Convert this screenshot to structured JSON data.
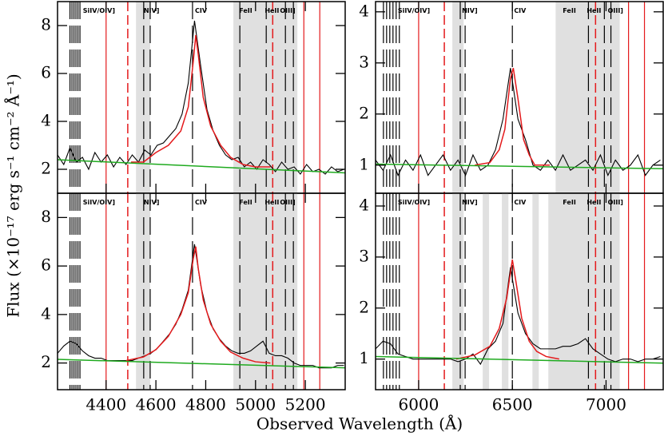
{
  "ylabel": "Flux (×10⁻¹⁷ erg s⁻¹ cm⁻² Å⁻¹)",
  "xlabel": "Observed Wavelength (Å)",
  "chart_data": [
    {
      "type": "line",
      "show_xtick_labels": false,
      "xlim": [
        4205,
        5360
      ],
      "ylim": [
        1,
        9
      ],
      "xticks": [
        4400,
        4600,
        4800,
        5000,
        5200
      ],
      "yticks": [
        2,
        4,
        6,
        8
      ],
      "shaded": [
        [
          4520,
          4577
        ],
        [
          4911,
          5168
        ]
      ],
      "red_lines": [
        4400,
        5194,
        5258
      ],
      "red_dashed": [
        4487,
        5069
      ],
      "line_markers": [
        4255,
        4263,
        4271,
        4279,
        4287,
        4295,
        4551,
        4577,
        4747,
        4937,
        5043,
        5120,
        5152
      ],
      "line_labels": [
        {
          "label": "SiIV/OIV]",
          "x": 4307
        },
        {
          "label": "NIV]",
          "x": 4551
        },
        {
          "label": "CIV",
          "x": 4757
        },
        {
          "label": "FeII",
          "x": 4934
        },
        {
          "label": "HeII",
          "x": 5037
        },
        {
          "label": "OIII]",
          "x": 5098
        }
      ],
      "series": [
        {
          "color": "#000000",
          "x": [
            4205,
            4230,
            4255,
            4280,
            4305,
            4330,
            4355,
            4380,
            4405,
            4430,
            4455,
            4480,
            4505,
            4530,
            4555,
            4580,
            4605,
            4630,
            4655,
            4680,
            4705,
            4730,
            4755,
            4780,
            4805,
            4830,
            4855,
            4880,
            4905,
            4930,
            4955,
            4980,
            5005,
            5030,
            5055,
            5080,
            5105,
            5130,
            5155,
            5180,
            5205,
            5230,
            5255,
            5280,
            5305,
            5330,
            5355
          ],
          "values": [
            2.6,
            2.2,
            2.9,
            2.3,
            2.5,
            2.0,
            2.7,
            2.3,
            2.6,
            2.1,
            2.5,
            2.2,
            2.6,
            2.3,
            2.8,
            2.6,
            3.0,
            3.1,
            3.4,
            3.7,
            4.3,
            5.6,
            8.2,
            6.3,
            4.5,
            3.6,
            3.0,
            2.6,
            2.4,
            2.5,
            2.1,
            2.3,
            2.0,
            2.4,
            2.2,
            1.9,
            2.3,
            2.0,
            2.1,
            1.8,
            2.2,
            1.9,
            2.0,
            1.8,
            2.1,
            1.9,
            2.0
          ]
        },
        {
          "color": "#e41a1c",
          "x": [
            4500,
            4550,
            4600,
            4650,
            4700,
            4730,
            4750,
            4760,
            4770,
            4790,
            4820,
            4860,
            4900,
            4950,
            5000,
            5060
          ],
          "values": [
            2.3,
            2.3,
            2.7,
            3.0,
            3.6,
            4.6,
            6.5,
            7.6,
            6.8,
            5.0,
            3.8,
            3.0,
            2.5,
            2.2,
            2.1,
            2.1
          ]
        },
        {
          "color": "#1faa1f",
          "x": [
            4205,
            5360
          ],
          "values": [
            2.4,
            1.85
          ]
        }
      ]
    },
    {
      "type": "line",
      "show_xtick_labels": false,
      "xlim": [
        5770,
        7305
      ],
      "ylim": [
        0.45,
        4.2
      ],
      "xticks": [
        6000,
        6500,
        7000
      ],
      "yticks": [
        1,
        2,
        3,
        4
      ],
      "shaded": [
        [
          6180,
          6240
        ],
        [
          6731,
          7073
        ]
      ],
      "red_lines": [
        6000,
        7120,
        7205
      ],
      "red_dashed": [
        6137,
        6944
      ],
      "line_markers": [
        5812,
        5829,
        5846,
        5863,
        5880,
        5897,
        6222,
        6248,
        6500,
        6906,
        6991,
        7026
      ],
      "line_labels": [
        {
          "label": "SiIV/OIV]",
          "x": 5889
        },
        {
          "label": "NIV]",
          "x": 6231
        },
        {
          "label": "CIV",
          "x": 6509
        },
        {
          "label": "FeII",
          "x": 6769
        },
        {
          "label": "HeII",
          "x": 6897
        },
        {
          "label": "OIII]",
          "x": 7009
        }
      ],
      "series": [
        {
          "color": "#000000",
          "x": [
            5770,
            5810,
            5850,
            5890,
            5930,
            5970,
            6010,
            6050,
            6090,
            6130,
            6170,
            6210,
            6250,
            6290,
            6330,
            6370,
            6410,
            6450,
            6490,
            6530,
            6570,
            6610,
            6650,
            6690,
            6730,
            6770,
            6810,
            6850,
            6890,
            6930,
            6970,
            7010,
            7050,
            7090,
            7130,
            7170,
            7210,
            7250,
            7290
          ],
          "values": [
            1.1,
            0.9,
            1.2,
            0.8,
            1.1,
            0.9,
            1.2,
            0.8,
            1.0,
            1.2,
            0.9,
            1.1,
            0.8,
            1.2,
            0.9,
            1.0,
            1.3,
            1.9,
            2.9,
            1.9,
            1.5,
            1.0,
            0.9,
            1.1,
            0.9,
            1.2,
            0.9,
            1.0,
            1.1,
            0.9,
            1.2,
            0.8,
            1.1,
            0.9,
            1.0,
            1.2,
            0.8,
            1.0,
            1.1
          ]
        },
        {
          "color": "#e41a1c",
          "x": [
            6300,
            6380,
            6430,
            6460,
            6490,
            6505,
            6530,
            6560,
            6590,
            6620,
            6700
          ],
          "values": [
            1.0,
            1.05,
            1.3,
            1.7,
            2.7,
            2.9,
            2.3,
            1.5,
            1.2,
            1.0,
            1.0
          ]
        },
        {
          "color": "#1faa1f",
          "x": [
            5770,
            7305
          ],
          "values": [
            1.02,
            0.93
          ]
        }
      ]
    },
    {
      "type": "line",
      "show_xtick_labels": true,
      "xlim": [
        4205,
        5360
      ],
      "ylim": [
        0.9,
        9
      ],
      "xticks": [
        4400,
        4600,
        4800,
        5000,
        5200
      ],
      "yticks": [
        2,
        4,
        6,
        8
      ],
      "shaded": [
        [
          4520,
          4577
        ],
        [
          4911,
          5168
        ]
      ],
      "red_lines": [
        4400,
        5194,
        5258
      ],
      "red_dashed": [
        4487,
        5069
      ],
      "line_markers": [
        4255,
        4263,
        4271,
        4279,
        4287,
        4295,
        4551,
        4577,
        4747,
        4937,
        5043,
        5120,
        5152
      ],
      "line_labels": [
        {
          "label": "SiIV/OIV]",
          "x": 4307
        },
        {
          "label": "NIV]",
          "x": 4551
        },
        {
          "label": "CIV",
          "x": 4757
        },
        {
          "label": "FeII",
          "x": 4934
        },
        {
          "label": "HeII",
          "x": 5037
        },
        {
          "label": "OIII]",
          "x": 5098
        }
      ],
      "series": [
        {
          "color": "#000000",
          "x": [
            4205,
            4230,
            4255,
            4280,
            4305,
            4330,
            4355,
            4380,
            4405,
            4430,
            4455,
            4480,
            4505,
            4530,
            4555,
            4580,
            4605,
            4630,
            4655,
            4680,
            4705,
            4730,
            4755,
            4780,
            4805,
            4830,
            4855,
            4880,
            4905,
            4930,
            4955,
            4980,
            5005,
            5030,
            5055,
            5080,
            5105,
            5130,
            5155,
            5180,
            5205,
            5230,
            5255,
            5280,
            5305,
            5330,
            5355
          ],
          "values": [
            2.4,
            2.7,
            2.9,
            2.8,
            2.5,
            2.3,
            2.2,
            2.2,
            2.1,
            2.1,
            2.1,
            2.1,
            2.1,
            2.2,
            2.3,
            2.4,
            2.6,
            2.9,
            3.2,
            3.6,
            4.2,
            5.0,
            6.9,
            5.2,
            4.1,
            3.4,
            3.0,
            2.7,
            2.5,
            2.4,
            2.4,
            2.5,
            2.7,
            2.9,
            2.4,
            2.3,
            2.3,
            2.2,
            2.0,
            1.9,
            1.9,
            1.9,
            1.8,
            1.8,
            1.8,
            1.9,
            1.9
          ]
        },
        {
          "color": "#e41a1c",
          "x": [
            4480,
            4550,
            4600,
            4650,
            4700,
            4730,
            4750,
            4760,
            4770,
            4790,
            4820,
            4860,
            4900,
            4950,
            5000,
            5060
          ],
          "values": [
            2.1,
            2.25,
            2.55,
            3.1,
            4.0,
            4.9,
            6.3,
            6.8,
            5.9,
            4.6,
            3.6,
            2.9,
            2.45,
            2.2,
            2.05,
            2.0
          ]
        },
        {
          "color": "#1faa1f",
          "x": [
            4205,
            5360
          ],
          "values": [
            2.15,
            1.8
          ]
        }
      ]
    },
    {
      "type": "line",
      "show_xtick_labels": true,
      "xlim": [
        5770,
        7305
      ],
      "ylim": [
        0.4,
        4.25
      ],
      "xticks": [
        6000,
        6500,
        7000
      ],
      "yticks": [
        1,
        2,
        3,
        4
      ],
      "shaded": [
        [
          6180,
          6240
        ],
        [
          6342,
          6376
        ],
        [
          6444,
          6479
        ],
        [
          6607,
          6641
        ],
        [
          6692,
          7073
        ]
      ],
      "red_lines": [
        6000,
        7120,
        7205
      ],
      "red_dashed": [
        6137,
        6944
      ],
      "line_markers": [
        5812,
        5829,
        5846,
        5863,
        5880,
        5897,
        6222,
        6248,
        6500,
        6906,
        6991,
        7026
      ],
      "line_labels": [
        {
          "label": "SiIV/OIV]",
          "x": 5889
        },
        {
          "label": "NIV]",
          "x": 6231
        },
        {
          "label": "CIV",
          "x": 6509
        },
        {
          "label": "FeII",
          "x": 6769
        },
        {
          "label": "HeII",
          "x": 6897
        },
        {
          "label": "OIII]",
          "x": 7009
        }
      ],
      "series": [
        {
          "color": "#000000",
          "x": [
            5770,
            5810,
            5850,
            5890,
            5930,
            5970,
            6010,
            6050,
            6090,
            6130,
            6170,
            6210,
            6250,
            6290,
            6330,
            6370,
            6410,
            6450,
            6490,
            6530,
            6570,
            6610,
            6650,
            6690,
            6730,
            6770,
            6810,
            6850,
            6890,
            6930,
            6970,
            7010,
            7050,
            7090,
            7130,
            7170,
            7210,
            7250,
            7290
          ],
          "values": [
            1.2,
            1.35,
            1.3,
            1.1,
            1.05,
            1.0,
            1.0,
            1.0,
            1.0,
            1.0,
            1.0,
            0.95,
            1.0,
            1.1,
            0.9,
            1.2,
            1.35,
            1.7,
            2.8,
            1.9,
            1.5,
            1.3,
            1.2,
            1.2,
            1.2,
            1.25,
            1.25,
            1.3,
            1.4,
            1.2,
            1.1,
            1.0,
            0.95,
            1.0,
            1.0,
            0.95,
            1.0,
            1.0,
            1.05
          ]
        },
        {
          "color": "#e41a1c",
          "x": [
            6200,
            6300,
            6380,
            6430,
            6470,
            6500,
            6520,
            6550,
            6590,
            6630,
            6680,
            6750
          ],
          "values": [
            1.0,
            1.08,
            1.25,
            1.6,
            2.2,
            2.95,
            2.5,
            1.8,
            1.35,
            1.15,
            1.05,
            1.0
          ]
        },
        {
          "color": "#1faa1f",
          "x": [
            5770,
            7305
          ],
          "values": [
            1.05,
            0.92
          ]
        }
      ]
    }
  ]
}
